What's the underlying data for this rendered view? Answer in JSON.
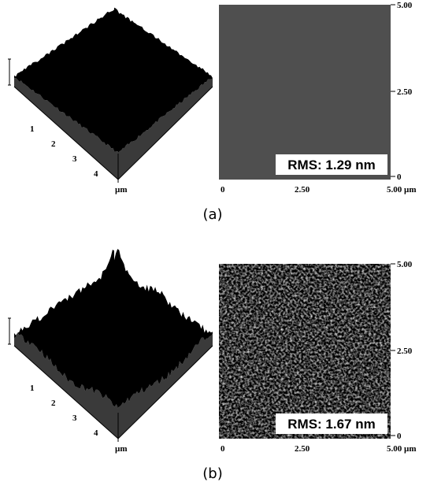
{
  "panels": [
    {
      "label": "(a)",
      "rms": "RMS: 1.29 nm",
      "surface_ticks": [
        "1",
        "2",
        "3",
        "4"
      ],
      "surface_unit": "µm",
      "map_x_ticks": [
        "0",
        "2.50",
        "5.00 µm"
      ],
      "map_y_ticks": [
        "5.00",
        "2.50",
        "0"
      ]
    },
    {
      "label": "(b)",
      "rms": "RMS: 1.67 nm",
      "surface_ticks": [
        "1",
        "2",
        "3",
        "4"
      ],
      "surface_unit": "µm",
      "map_x_ticks": [
        "0",
        "2.50",
        "5.00 µm"
      ],
      "map_y_ticks": [
        "5.00",
        "2.50",
        "0"
      ]
    }
  ]
}
